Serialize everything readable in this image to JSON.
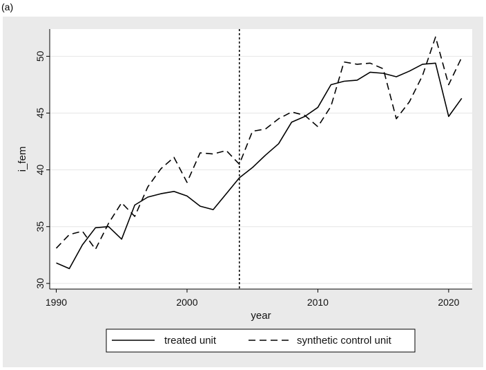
{
  "panel_label": "(a)",
  "chart_data": {
    "type": "line",
    "xlabel": "year",
    "ylabel": "i_fem",
    "xlim": [
      1989.5,
      2021.8
    ],
    "ylim": [
      29.5,
      52.4
    ],
    "x_ticks": [
      1990,
      2000,
      2010,
      2020
    ],
    "y_ticks": [
      30,
      35,
      40,
      45,
      50
    ],
    "grid": true,
    "vline": 2004,
    "legend_position": "bottom",
    "x": [
      1990,
      1991,
      1992,
      1993,
      1994,
      1995,
      1996,
      1997,
      1998,
      1999,
      2000,
      2001,
      2002,
      2003,
      2004,
      2005,
      2006,
      2007,
      2008,
      2009,
      2010,
      2011,
      2012,
      2013,
      2014,
      2015,
      2016,
      2017,
      2018,
      2019,
      2020,
      2021
    ],
    "series": [
      {
        "name": "treated unit",
        "style": "solid",
        "color": "#000000",
        "values": [
          31.8,
          31.3,
          33.4,
          34.9,
          35.0,
          33.9,
          36.9,
          37.6,
          37.9,
          38.1,
          37.7,
          36.8,
          36.5,
          37.9,
          39.3,
          40.2,
          41.3,
          42.3,
          44.2,
          44.7,
          45.5,
          47.5,
          47.8,
          47.9,
          48.6,
          48.5,
          48.2,
          48.7,
          49.3,
          49.4,
          44.7,
          46.3
        ]
      },
      {
        "name": "synthetic control unit",
        "style": "dashed",
        "color": "#000000",
        "values": [
          33.1,
          34.3,
          34.6,
          33.0,
          35.3,
          37.1,
          35.9,
          38.5,
          40.1,
          41.1,
          38.9,
          41.5,
          41.4,
          41.7,
          40.5,
          43.4,
          43.6,
          44.5,
          45.1,
          44.8,
          43.8,
          45.6,
          49.5,
          49.3,
          49.4,
          48.9,
          44.5,
          46.0,
          48.3,
          51.7,
          47.5,
          49.9
        ]
      }
    ]
  }
}
